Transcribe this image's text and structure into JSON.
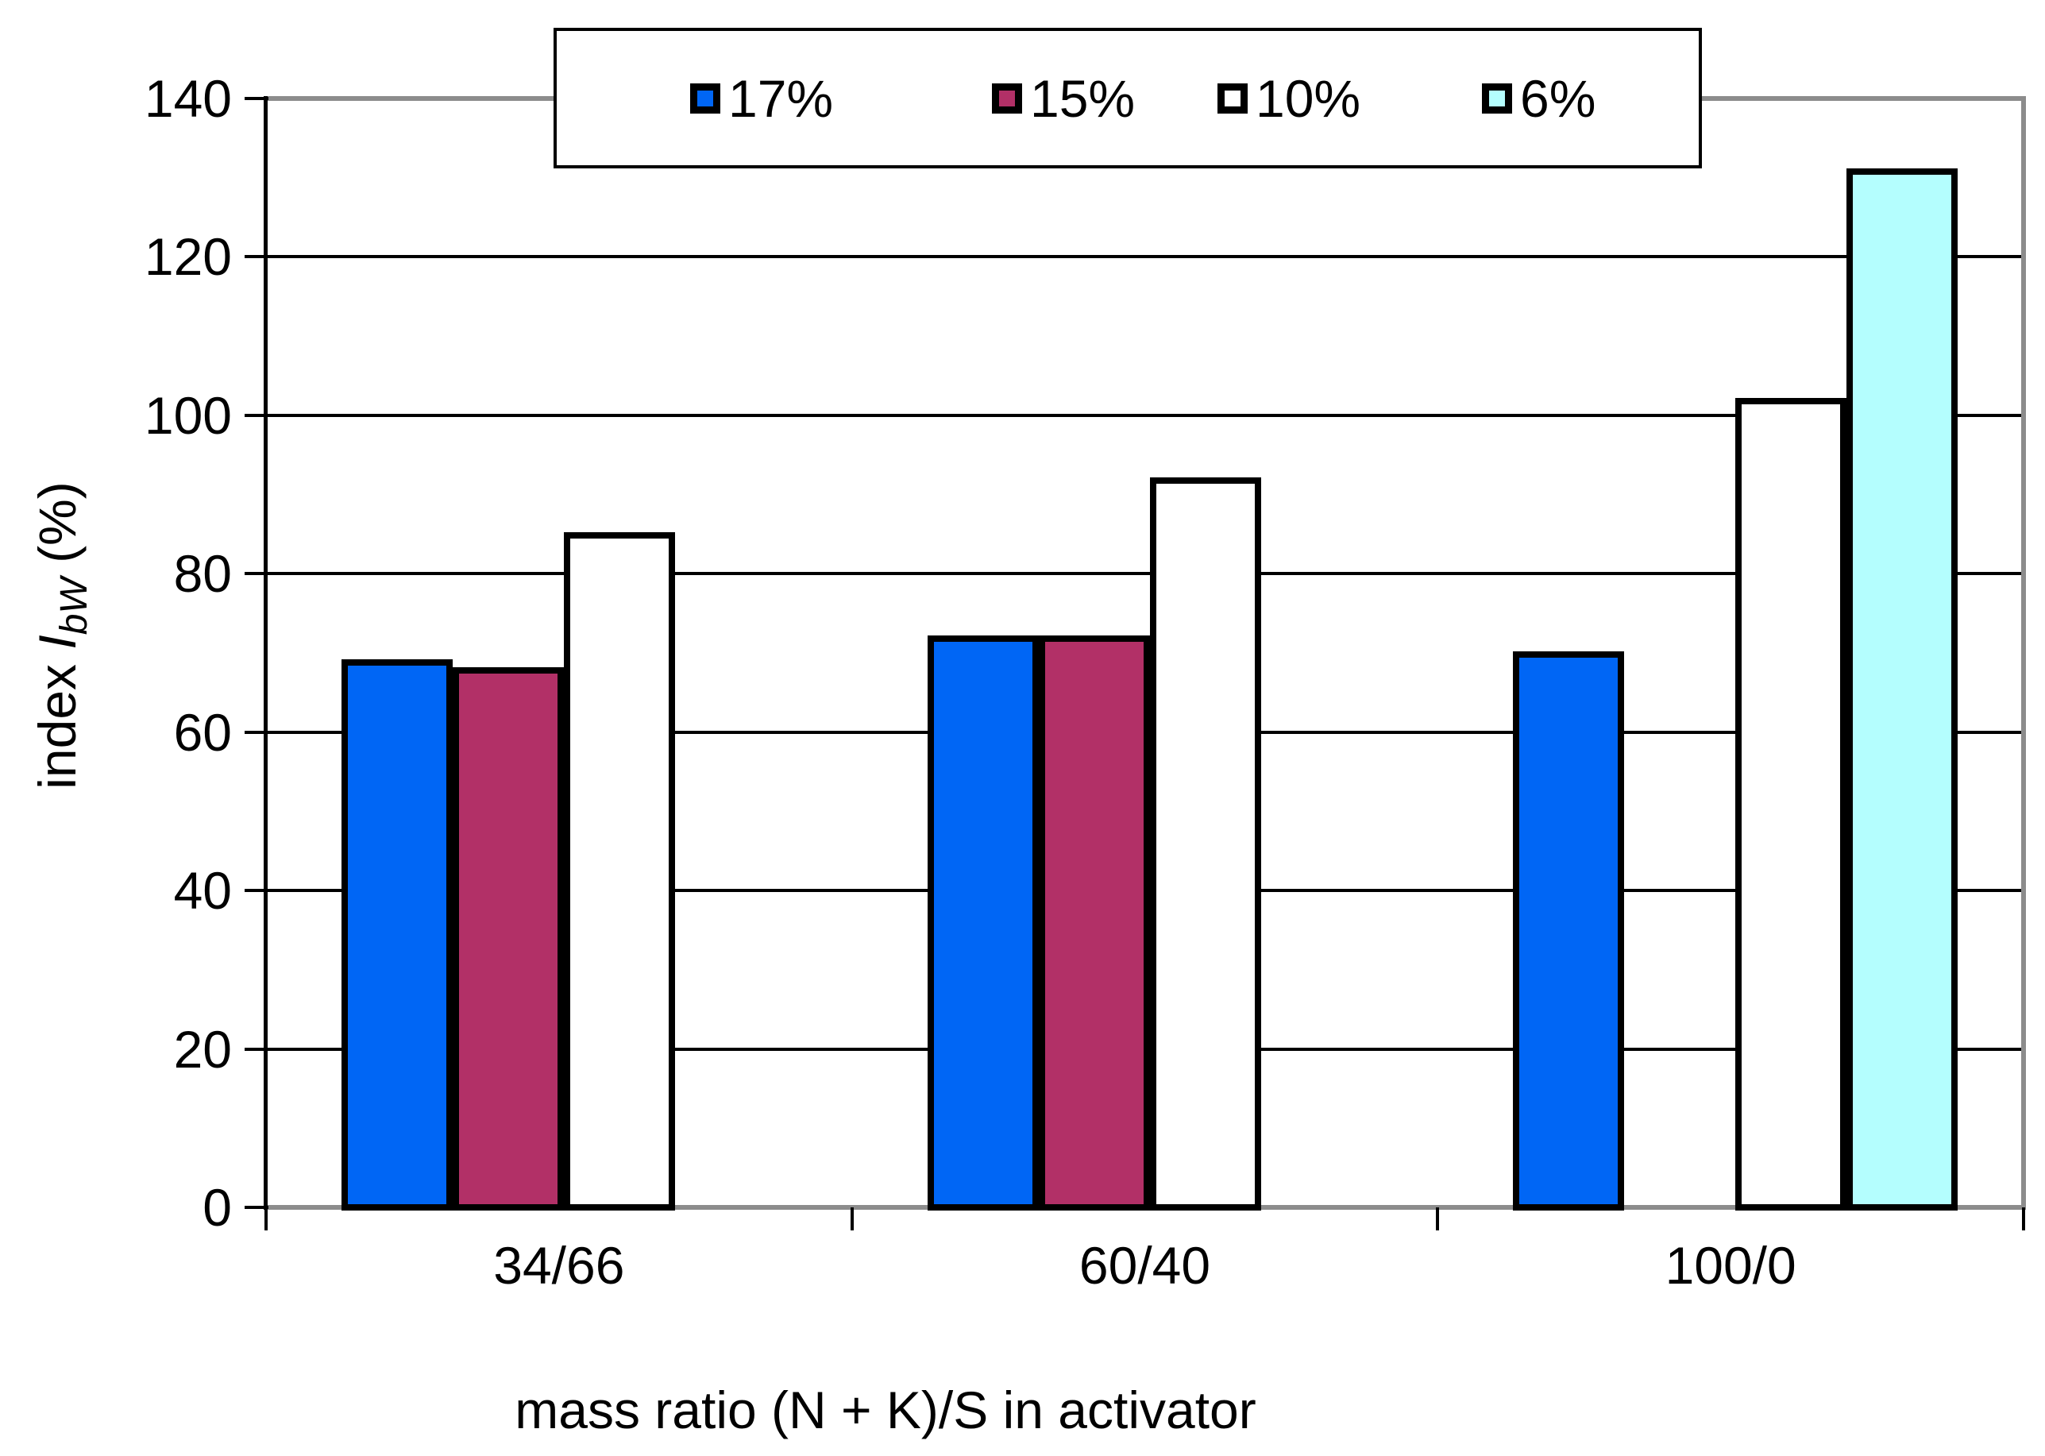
{
  "chart_data": {
    "type": "bar",
    "title": "",
    "categories": [
      "34/66",
      "60/40",
      "100/0"
    ],
    "series": [
      {
        "name": "17%",
        "color": "#0066F5",
        "values": [
          69,
          72,
          70
        ]
      },
      {
        "name": "15%",
        "color": "#B23067",
        "values": [
          68,
          72,
          null
        ]
      },
      {
        "name": "10%",
        "color": "#FFFFFF",
        "values": [
          85,
          92,
          102
        ]
      },
      {
        "name": "6%",
        "color": "#B4FEFE",
        "values": [
          null,
          null,
          131
        ]
      }
    ],
    "xlabel": "mass ratio (N + K)/S in activator",
    "ylabel": "index IbW (%)",
    "ylabel_parts": {
      "prefix": "index ",
      "symbol": "I",
      "subscript": "bW",
      "suffix": " (%)"
    },
    "ylim": [
      0,
      140
    ],
    "ytick_step": 20,
    "y_ticks": [
      "0",
      "20",
      "40",
      "60",
      "80",
      "100",
      "120",
      "140"
    ],
    "grid": "horizontal-black-gridlines",
    "legend_position": "top"
  },
  "legend": {
    "items": [
      {
        "label": "17%",
        "color": "#0066F5"
      },
      {
        "label": "15%",
        "color": "#B23067"
      },
      {
        "label": "10%",
        "color": "#FFFFFF"
      },
      {
        "label": "6%",
        "color": "#B4FEFE"
      }
    ]
  },
  "colors": {
    "background": "#FFFFFF",
    "axis_and_border_gray": "#8C8C8C",
    "gridline_black": "#000000",
    "bar_outline": "#000000"
  }
}
